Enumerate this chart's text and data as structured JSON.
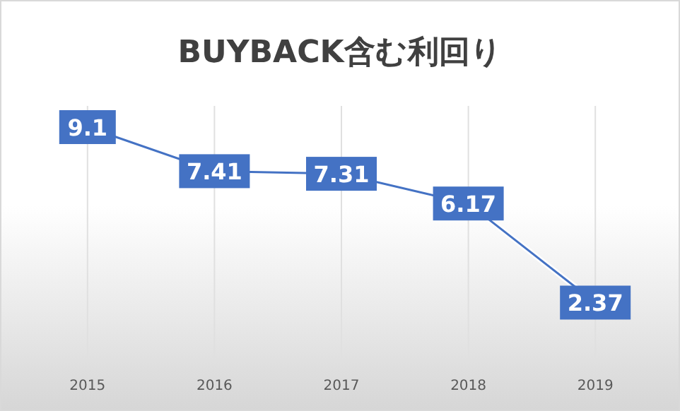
{
  "chart_data": {
    "type": "line",
    "title": "BUYBACK含む利回り",
    "categories": [
      "2015",
      "2016",
      "2017",
      "2018",
      "2019"
    ],
    "series": [
      {
        "color": "#4472c4",
        "values": [
          9.1,
          7.41,
          7.31,
          6.17,
          2.37
        ]
      }
    ],
    "data_labels": true,
    "grid": "x",
    "line_style": "solid"
  }
}
